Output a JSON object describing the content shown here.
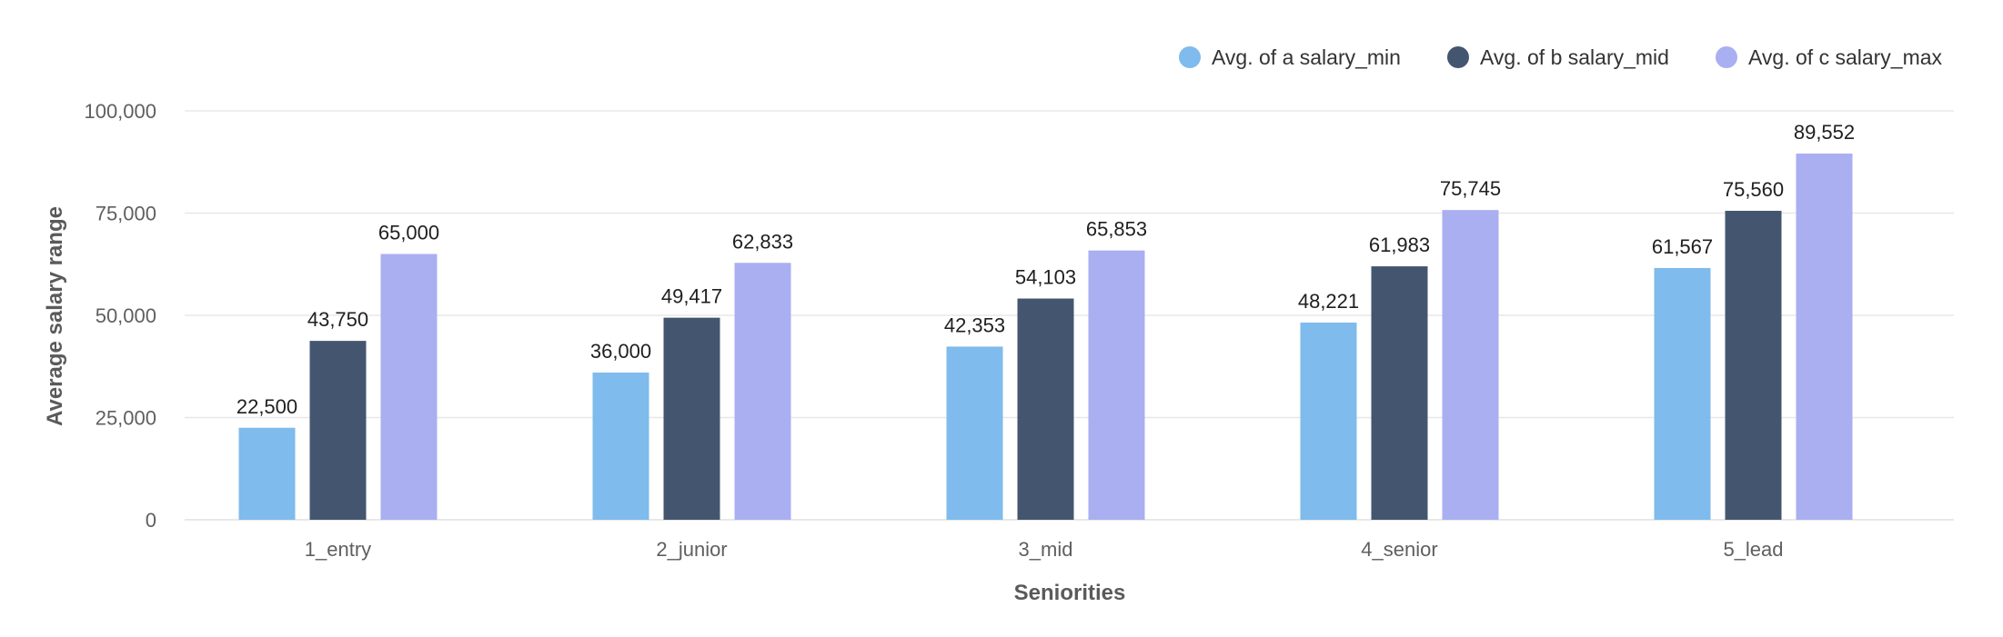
{
  "chart_data": {
    "type": "bar",
    "title": "",
    "xlabel": "Seniorities",
    "ylabel": "Average salary range",
    "categories": [
      "1_entry",
      "2_junior",
      "3_mid",
      "4_senior",
      "5_lead"
    ],
    "series": [
      {
        "name": "Avg. of a salary_min",
        "color": "#7fbbec",
        "values": [
          22500,
          36000,
          42353,
          48221,
          61567
        ],
        "labels": [
          "22,500",
          "36,000",
          "42,353",
          "48,221",
          "61,567"
        ]
      },
      {
        "name": "Avg. of b salary_mid",
        "color": "#44566f",
        "values": [
          43750,
          49417,
          54103,
          61983,
          75560
        ],
        "labels": [
          "43,750",
          "49,417",
          "54,103",
          "61,983",
          "75,560"
        ]
      },
      {
        "name": "Avg. of c salary_max",
        "color": "#a9aff0",
        "values": [
          65000,
          62833,
          65853,
          75745,
          89552
        ],
        "labels": [
          "65,000",
          "62,833",
          "65,853",
          "75,745",
          "89,552"
        ]
      }
    ],
    "ylim": [
      0,
      100000
    ],
    "yticks": [
      0,
      25000,
      50000,
      75000,
      100000
    ],
    "ytick_labels": [
      "0",
      "25,000",
      "50,000",
      "75,000",
      "100,000"
    ],
    "grid": true,
    "legend_position": "top-right"
  }
}
